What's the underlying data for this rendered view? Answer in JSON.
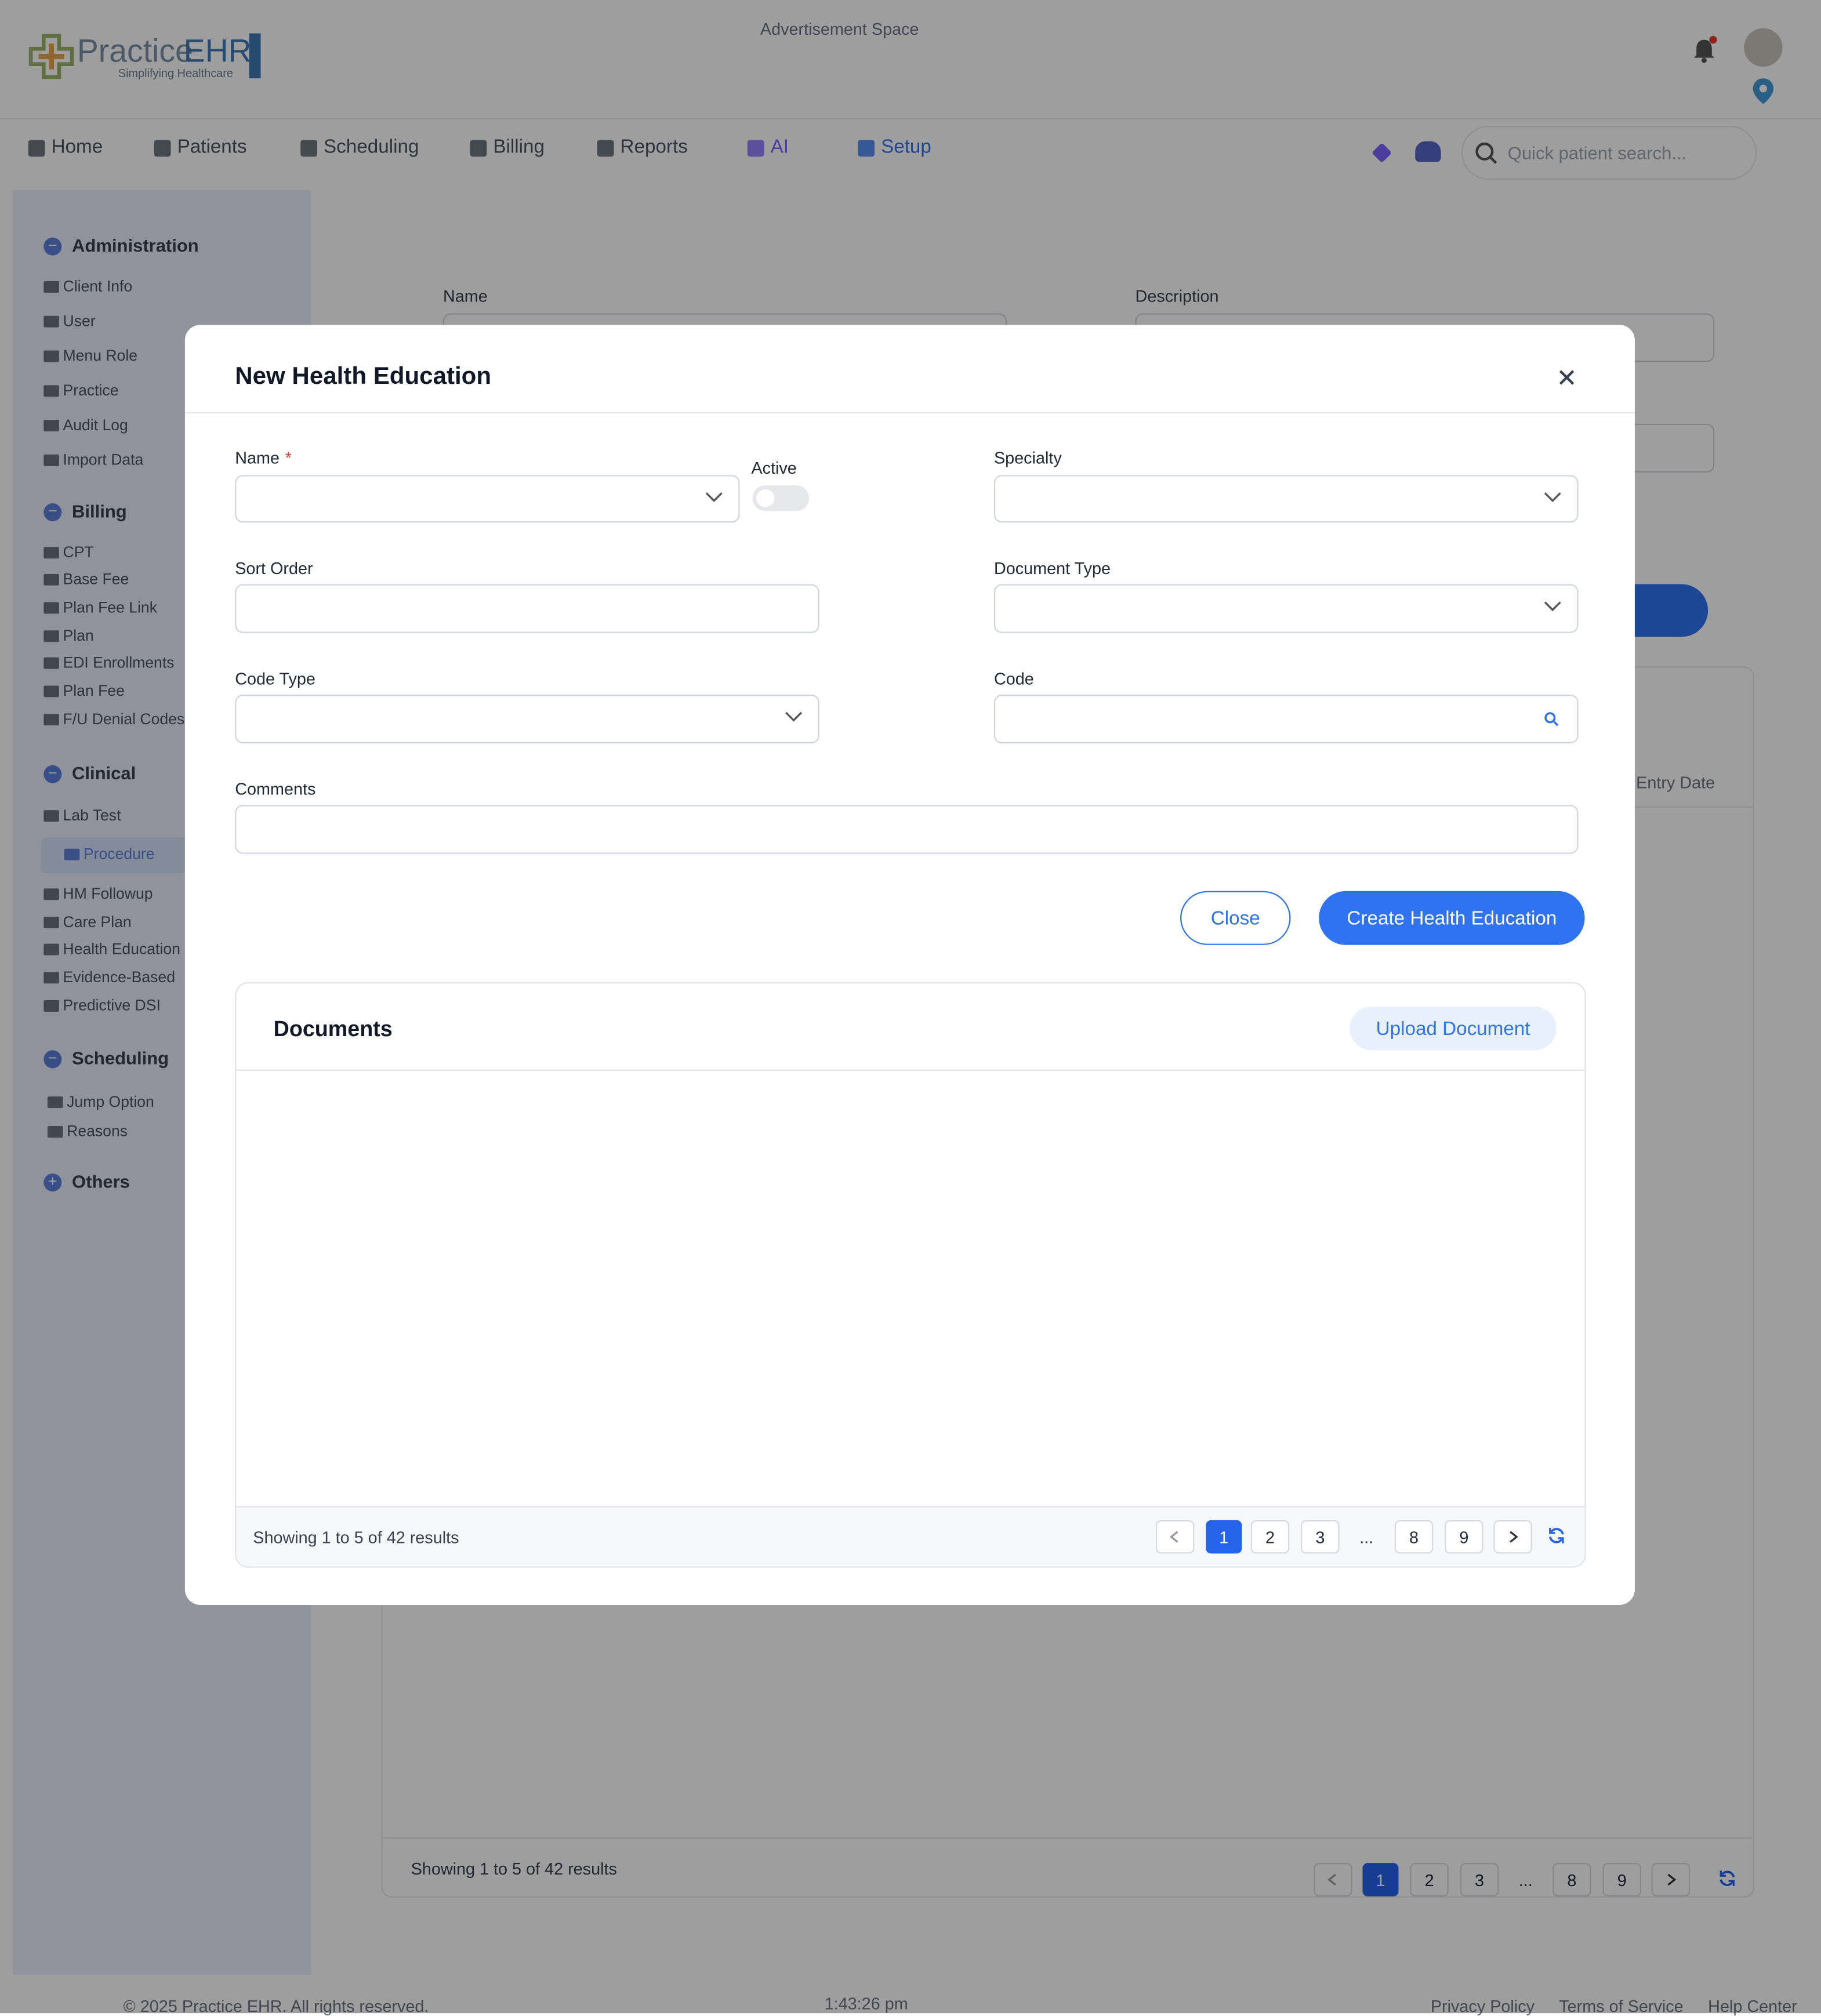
{
  "header": {
    "logo_main": "Practice",
    "logo_accent": "EHR",
    "tagline": "Simplifying Healthcare",
    "ad": "Advertisement Space"
  },
  "nav": {
    "items": [
      "Home",
      "Patients",
      "Scheduling",
      "Billing",
      "Reports",
      "AI",
      "Setup"
    ],
    "search_placeholder": "Quick patient search..."
  },
  "sidebar": [
    {
      "title": "Administration",
      "items": [
        "Client Info",
        "User",
        "Menu Role",
        "Practice",
        "Audit Log",
        "Import Data"
      ]
    },
    {
      "title": "Billing",
      "items": [
        "CPT",
        "Base Fee",
        "Plan Fee Link",
        "Plan",
        "EDI Enrollments",
        "Plan Fee",
        "F/U Denial Codes"
      ]
    },
    {
      "title": "Clinical",
      "items": [
        "Lab Test",
        "Procedure",
        "HM Followup",
        "Care Plan",
        "Health Education",
        "Evidence-Based",
        "Predictive DSI"
      ]
    },
    {
      "title": "Scheduling",
      "items": [
        "Jump Option",
        "Reasons"
      ]
    },
    {
      "title": "Others",
      "items": []
    }
  ],
  "background": {
    "name_label": "Name",
    "description_label": "Description",
    "column": "Entry Date",
    "summary": "Showing 1 to 5 of 42 results",
    "pages": [
      "1",
      "2",
      "3",
      "...",
      "8",
      "9"
    ]
  },
  "modal": {
    "title": "New Health Education",
    "fields": {
      "name": "Name",
      "required": "*",
      "active": "Active",
      "specialty": "Specialty",
      "sort_order": "Sort Order",
      "document_type": "Document Type",
      "code_type": "Code Type",
      "code": "Code",
      "comments": "Comments"
    },
    "buttons": {
      "close": "Close",
      "create": "Create Health Education"
    },
    "documents": {
      "title": "Documents",
      "upload": "Upload Document",
      "summary": "Showing 1 to 5 of 42 results",
      "pages": [
        "1",
        "2",
        "3",
        "...",
        "8",
        "9"
      ]
    }
  },
  "footer": {
    "copyright": "© 2025 Practice EHR. All rights reserved.",
    "time": "1:43:26 pm",
    "links": [
      "Privacy Policy",
      "Terms of Service",
      "Help Center"
    ]
  }
}
